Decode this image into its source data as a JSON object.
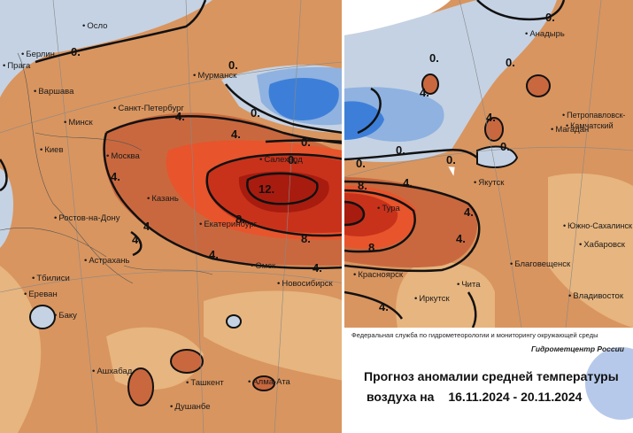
{
  "colors": {
    "warm_light": "#e7b57f",
    "warm_medium": "#d9955f",
    "warm_strong": "#c9683e",
    "warm_orange_red": "#e8542c",
    "warm_red": "#c8321b",
    "warm_dark_red": "#a81c0f",
    "cold_light": "#c5d2e3",
    "cold_medium": "#8fb2e0",
    "cold_strong": "#3d7fd8",
    "cold_deep": "#2458c2",
    "logo_blue": "#a9c0e6"
  },
  "left_map": {
    "cities": [
      "Осло",
      "Берлин",
      "Прага",
      "Варшава",
      "Минск",
      "Санкт-Петербург",
      "Мурманск",
      "Москва",
      "Киев",
      "Казань",
      "Ростов-на-Дону",
      "Астрахань",
      "Тбилиси",
      "Ереван",
      "Баку",
      "Екатеринбург",
      "Салехард",
      "Омск",
      "Новосибирск",
      "Ашхабад",
      "Ташкент",
      "Алма-Ата",
      "Душанбе"
    ],
    "isolines": [
      "0.",
      "0.",
      "0.",
      "0.",
      "4.",
      "4.",
      "4.",
      "4.",
      "4.",
      "4.",
      "0.",
      "12.",
      "8.",
      "8.",
      "4."
    ]
  },
  "right_map": {
    "cities": [
      "Анадырь",
      "Магадан",
      "Петропавловск-",
      "Камчатский",
      "Якутск",
      "Тура",
      "Южно-Сахалинск",
      "Хабаровск",
      "Благовещенск",
      "Владивосток",
      "Красноярск",
      "Иркутск",
      "Чита"
    ],
    "isolines": [
      "0.",
      "0.",
      "0.",
      "4.",
      "0.",
      "0.",
      "0.",
      "0.",
      "4.",
      "8.",
      "8.",
      "4.",
      "4.",
      "4.",
      "4."
    ]
  },
  "info": {
    "agency": "Федеральная служба по гидрометеорологии и мониторингу окружающей среды",
    "brand": "Гидрометцентр России",
    "title": "Прогноз аномалии средней температуры",
    "dates_prefix": "воздуха на",
    "date_range": "16.11.2024 - 20.11.2024"
  }
}
